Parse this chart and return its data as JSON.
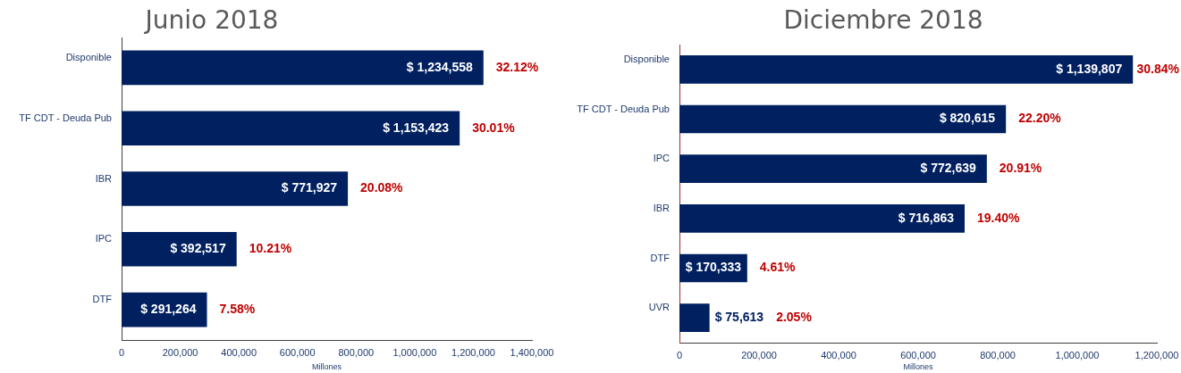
{
  "chart_data": [
    {
      "type": "bar",
      "orientation": "horizontal",
      "title": "Junio 2018",
      "xlabel": "Millones",
      "categories": [
        "Disponible",
        "TF CDT - Deuda Pub",
        "IBR",
        "IPC",
        "DTF"
      ],
      "values": [
        1234558,
        1153423,
        771927,
        392517,
        291264
      ],
      "color": "#002060",
      "value_labels": [
        "$ 1,234,558",
        "$ 1,153,423",
        "$ 771,927",
        "$ 392,517",
        "$ 291,264"
      ],
      "xlim": [
        0,
        1400000
      ],
      "xticks": [
        0,
        {
          "value": 200000,
          "label": "200,000"
        },
        {
          "value": 400000,
          "label": "400,000"
        },
        {
          "value": 600000,
          "label": "600,000"
        },
        {
          "value": 800000,
          "label": "800,000"
        },
        {
          "value": 1000000,
          "label": "1,000,000"
        },
        {
          "value": 1200000,
          "label": "1,200,000"
        },
        {
          "value": 1400000,
          "label": "1,400,000"
        }
      ],
      "annotations": [
        "32.12%",
        "30.01%",
        "20.08%",
        "10.21%",
        "7.58%"
      ]
    },
    {
      "type": "bar",
      "orientation": "horizontal",
      "title": "Diciembre 2018",
      "xlabel": "Millones",
      "categories": [
        "Disponible",
        "TF CDT - Deuda Pub",
        "IPC",
        "IBR",
        "DTF",
        "UVR"
      ],
      "values": [
        1139807,
        820615,
        772639,
        716863,
        170333,
        75613
      ],
      "color": "#002060",
      "value_labels": [
        "$ 1,139,807",
        "$ 820,615",
        "$ 772,639",
        "$ 716,863",
        "$ 170,333",
        "$ 75,613"
      ],
      "xlim": [
        0,
        1200000
      ],
      "xticks": [
        0,
        {
          "value": 200000,
          "label": "200,000"
        },
        {
          "value": 400000,
          "label": "400,000"
        },
        {
          "value": 600000,
          "label": "600,000"
        },
        {
          "value": 800000,
          "label": "800,000"
        },
        {
          "value": 1000000,
          "label": "1,000,000"
        },
        {
          "value": 1200000,
          "label": "1,200,000"
        }
      ],
      "annotations": [
        "30.84%",
        "22.20%",
        "20.91%",
        "19.40%",
        "4.61%",
        "2.05%"
      ]
    }
  ]
}
